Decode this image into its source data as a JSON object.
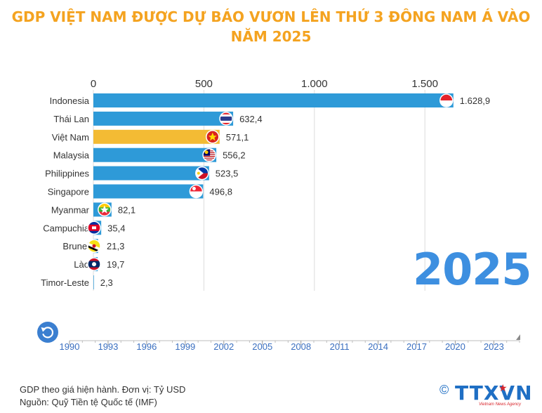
{
  "title_line1": "GDP VIỆT NAM ĐƯỢC DỰ BÁO VƯƠN LÊN THỨ 3 ĐÔNG NAM Á VÀO",
  "title_line2": "NĂM 2025",
  "year_display": "2025",
  "footer": {
    "unit_note": "GDP theo giá hiện hành. Đơn vị: Tỷ USD",
    "source": "Nguồn: Quỹ Tiền tệ Quốc tế (IMF)"
  },
  "logo": {
    "copyright": "©",
    "brand": "TTXVN",
    "tagline": "Vietnam News Agency"
  },
  "colors": {
    "bar": "#2e9ad8",
    "highlight": "#f3bb34",
    "year": "#3d8fe0",
    "title": "#f4a320"
  },
  "chart_data": {
    "type": "bar",
    "orientation": "horizontal",
    "categories": [
      "Indonesia",
      "Thái Lan",
      "Việt Nam",
      "Malaysia",
      "Philippines",
      "Singapore",
      "Myanmar",
      "Campuchia",
      "Brunei",
      "Lào",
      "Timor-Leste"
    ],
    "values": [
      1628.9,
      632.4,
      571.1,
      556.2,
      523.5,
      496.8,
      82.1,
      35.4,
      21.3,
      19.7,
      2.3
    ],
    "value_labels": [
      "1.628,9",
      "632,4",
      "571,1",
      "556,2",
      "523,5",
      "496,8",
      "82,1",
      "35,4",
      "21,3",
      "19,7",
      "2,3"
    ],
    "highlight_category": "Việt Nam",
    "xlim": [
      0,
      1750
    ],
    "x_ticks": [
      0,
      500,
      1000,
      1500
    ],
    "x_tick_labels": [
      "0",
      "500",
      "1.000",
      "1.500"
    ],
    "x_axis_position": "top",
    "grid": true,
    "icons": [
      "indonesia-flag-icon",
      "thailand-flag-icon",
      "vietnam-flag-icon",
      "malaysia-flag-icon",
      "philippines-flag-icon",
      "singapore-flag-icon",
      "myanmar-flag-icon",
      "cambodia-flag-icon",
      "brunei-flag-icon",
      "laos-flag-icon",
      "timor-leste-flag-icon"
    ]
  },
  "timeline": {
    "labels": [
      "1990",
      "1993",
      "1996",
      "1999",
      "2002",
      "2005",
      "2008",
      "2011",
      "2014",
      "2017",
      "2020",
      "2023"
    ],
    "start_year": 1990,
    "end_year": 2025,
    "current_year": 2025,
    "replay_icon": "replay-icon"
  }
}
